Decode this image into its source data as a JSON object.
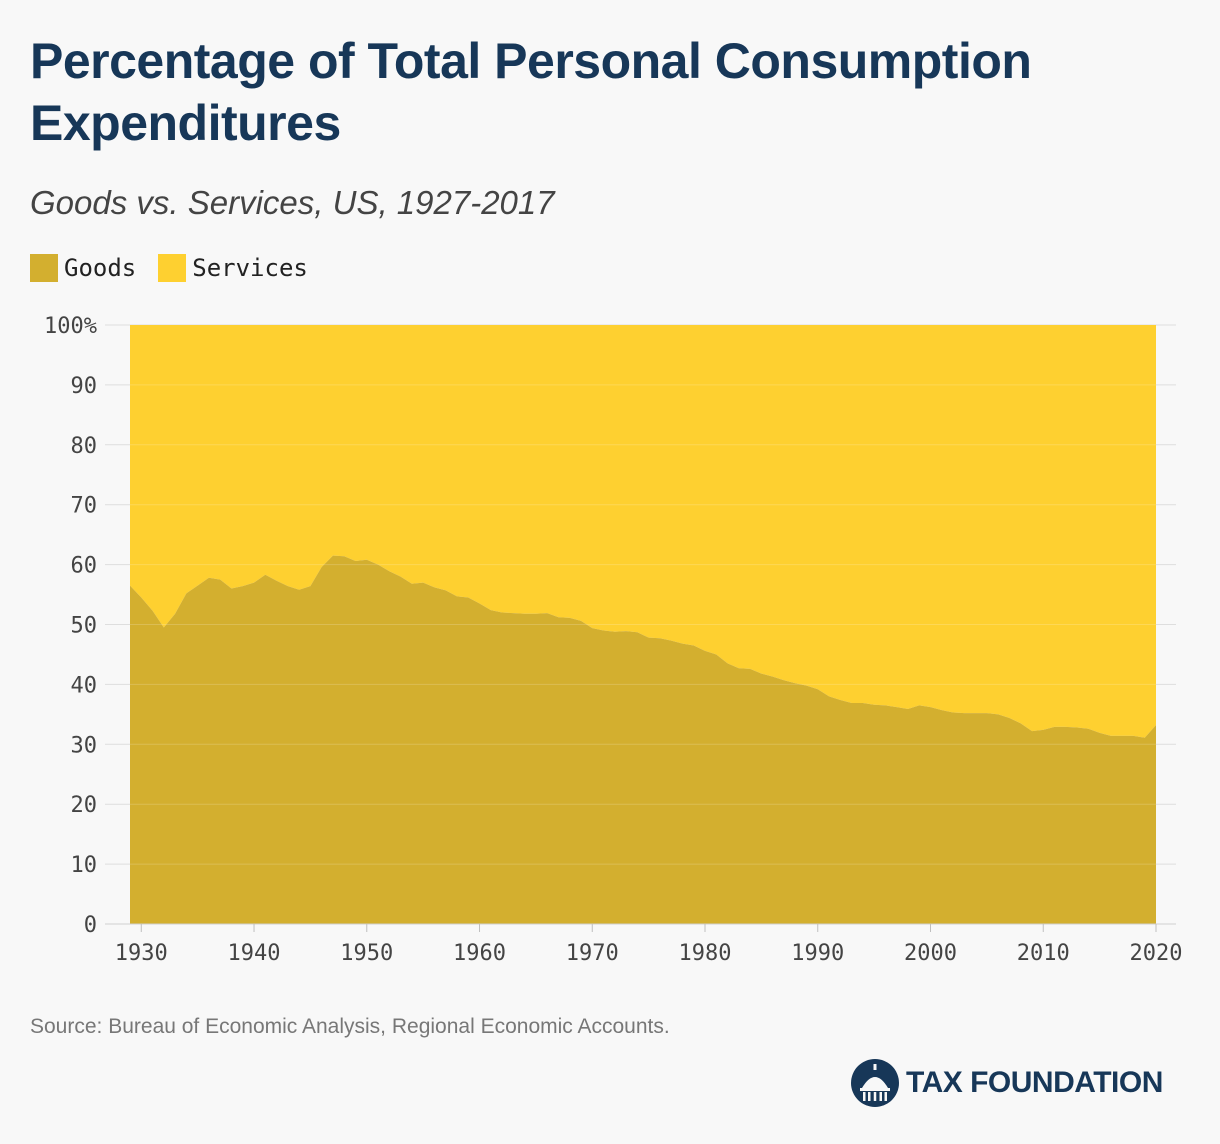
{
  "header": {
    "title": "Percentage of Total Personal Consumption Expenditures",
    "subtitle": "Goods vs. Services, US, 1927-2017"
  },
  "legend": {
    "goods_label": "Goods",
    "services_label": "Services"
  },
  "colors": {
    "goods": "#d3af2f",
    "services": "#fed030",
    "title": "#173758",
    "grid": "#e0d9c0",
    "background": "#f8f8f8"
  },
  "chart_data": {
    "type": "area",
    "stacked": true,
    "percent_stacked": true,
    "title": "Percentage of Total Personal Consumption Expenditures",
    "subtitle": "Goods vs. Services, US, 1927-2017",
    "xlim": [
      1929,
      2020
    ],
    "ylim": [
      0,
      100
    ],
    "x_ticks": [
      1930,
      1940,
      1950,
      1960,
      1970,
      1980,
      1990,
      2000,
      2010,
      2020
    ],
    "x_tick_labels": [
      "1930",
      "1940",
      "1950",
      "1960",
      "1970",
      "1980",
      "1990",
      "2000",
      "2010",
      "2020"
    ],
    "y_ticks": [
      0,
      10,
      20,
      30,
      40,
      50,
      60,
      70,
      80,
      90,
      100
    ],
    "y_tick_labels": [
      "0",
      "10",
      "20",
      "30",
      "40",
      "50",
      "60",
      "70",
      "80",
      "90",
      "100%"
    ],
    "grid": true,
    "legend_position": "top-left",
    "x": [
      1929,
      1930,
      1931,
      1932,
      1933,
      1934,
      1935,
      1936,
      1937,
      1938,
      1939,
      1940,
      1941,
      1942,
      1943,
      1944,
      1945,
      1946,
      1947,
      1948,
      1949,
      1950,
      1951,
      1952,
      1953,
      1954,
      1955,
      1956,
      1957,
      1958,
      1959,
      1960,
      1961,
      1962,
      1963,
      1964,
      1965,
      1966,
      1967,
      1968,
      1969,
      1970,
      1971,
      1972,
      1973,
      1974,
      1975,
      1976,
      1977,
      1978,
      1979,
      1980,
      1981,
      1982,
      1983,
      1984,
      1985,
      1986,
      1987,
      1988,
      1989,
      1990,
      1991,
      1992,
      1993,
      1994,
      1995,
      1996,
      1997,
      1998,
      1999,
      2000,
      2001,
      2002,
      2003,
      2004,
      2005,
      2006,
      2007,
      2008,
      2009,
      2010,
      2011,
      2012,
      2013,
      2014,
      2015,
      2016,
      2017,
      2018,
      2019,
      2020
    ],
    "series": [
      {
        "name": "Goods",
        "values": [
          56.5,
          54.5,
          52.3,
          49.5,
          51.8,
          55.2,
          56.5,
          57.8,
          57.5,
          56.0,
          56.4,
          57.0,
          58.3,
          57.3,
          56.4,
          55.8,
          56.4,
          59.6,
          61.5,
          61.4,
          60.6,
          60.8,
          60.0,
          58.9,
          58.0,
          56.8,
          57.0,
          56.2,
          55.7,
          54.7,
          54.5,
          53.5,
          52.4,
          52.0,
          51.9,
          51.8,
          51.8,
          51.9,
          51.2,
          51.1,
          50.6,
          49.4,
          49.0,
          48.8,
          48.9,
          48.7,
          47.8,
          47.7,
          47.3,
          46.8,
          46.5,
          45.6,
          45.0,
          43.5,
          42.7,
          42.6,
          41.8,
          41.3,
          40.7,
          40.2,
          39.8,
          39.2,
          38.0,
          37.4,
          36.9,
          36.9,
          36.6,
          36.5,
          36.2,
          35.9,
          36.5,
          36.2,
          35.7,
          35.3,
          35.2,
          35.2,
          35.2,
          35.0,
          34.4,
          33.5,
          32.2,
          32.4,
          32.9,
          32.9,
          32.8,
          32.6,
          31.9,
          31.4,
          31.4,
          31.4,
          31.1,
          33.2
        ]
      },
      {
        "name": "Services",
        "values": [
          43.5,
          45.5,
          47.7,
          50.5,
          48.2,
          44.8,
          43.5,
          42.2,
          42.5,
          44.0,
          43.6,
          43.0,
          41.7,
          42.7,
          43.6,
          44.2,
          43.6,
          40.4,
          38.5,
          38.6,
          39.4,
          39.2,
          40.0,
          41.1,
          42.0,
          43.2,
          43.0,
          43.8,
          44.3,
          45.3,
          45.5,
          46.5,
          47.6,
          48.0,
          48.1,
          48.2,
          48.2,
          48.1,
          48.8,
          48.9,
          49.4,
          50.6,
          51.0,
          51.2,
          51.1,
          51.3,
          52.2,
          52.3,
          52.7,
          53.2,
          53.5,
          54.4,
          55.0,
          56.5,
          57.3,
          57.4,
          58.2,
          58.7,
          59.3,
          59.8,
          60.2,
          60.8,
          62.0,
          62.6,
          63.1,
          63.1,
          63.4,
          63.5,
          63.8,
          64.1,
          63.5,
          63.8,
          64.3,
          64.7,
          64.8,
          64.8,
          64.8,
          65.0,
          65.6,
          66.5,
          67.8,
          67.6,
          67.1,
          67.1,
          67.2,
          67.4,
          68.1,
          68.6,
          68.6,
          68.6,
          68.9,
          66.8
        ]
      }
    ]
  },
  "source": "Source: Bureau of Economic Analysis, Regional Economic Accounts.",
  "logo": {
    "text": "TAX FOUNDATION",
    "icon": "capitol-dome-icon"
  }
}
